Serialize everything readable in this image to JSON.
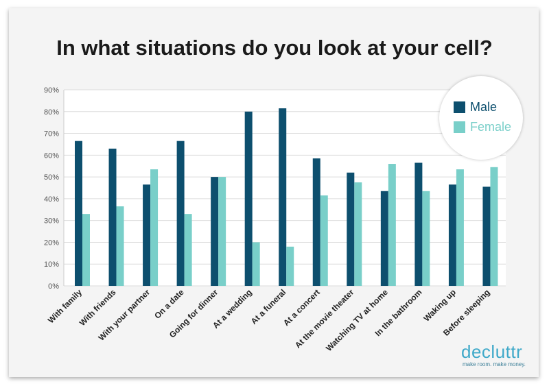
{
  "title": "In what situations do you look at your cell?",
  "colors": {
    "male": "#0d4f6e",
    "female": "#79cfc9"
  },
  "brand": {
    "name": "decluttr",
    "tagline": "make room. make money."
  },
  "chart_data": {
    "type": "bar",
    "categories": [
      "With family",
      "With friends",
      "With your partner",
      "On a date",
      "Going for dinner",
      "At a wedding",
      "At a funeral",
      "At a concert",
      "At the movie theater",
      "Watching TV at home",
      "In the bathroom",
      "Waking up",
      "Before sleeping"
    ],
    "series": [
      {
        "name": "Male",
        "values": [
          66.5,
          63,
          46.5,
          66.5,
          50,
          80,
          81.5,
          58.5,
          52,
          43.5,
          56.5,
          46.5,
          45.5
        ]
      },
      {
        "name": "Female",
        "values": [
          33,
          36.5,
          53.5,
          33,
          50,
          20,
          18,
          41.5,
          47.5,
          56,
          43.5,
          53.5,
          54.5
        ]
      }
    ],
    "ylim": [
      0,
      90
    ],
    "yticks": [
      "0%",
      "10%",
      "20%",
      "30%",
      "40%",
      "50%",
      "60%",
      "70%",
      "80%",
      "90%"
    ],
    "legend": "top-right",
    "grid": true
  }
}
